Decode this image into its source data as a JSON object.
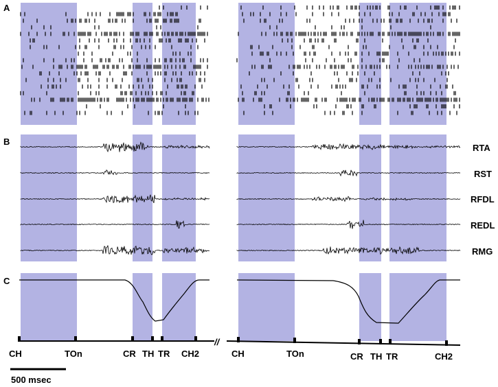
{
  "panels": {
    "a": "A",
    "b": "B",
    "c": "C"
  },
  "emg_channels": [
    "RTA",
    "RST",
    "RFDL",
    "REDL",
    "RMG"
  ],
  "events": [
    "CH",
    "TOn",
    "CR",
    "TH",
    "TR",
    "CH2",
    "CH",
    "TOn",
    "CR",
    "TH",
    "TR",
    "CH2"
  ],
  "axis_break": "//",
  "scale_bar": {
    "label": "500 msec"
  },
  "colors": {
    "shade": "#b3b3e3",
    "ink": "#000000"
  }
}
